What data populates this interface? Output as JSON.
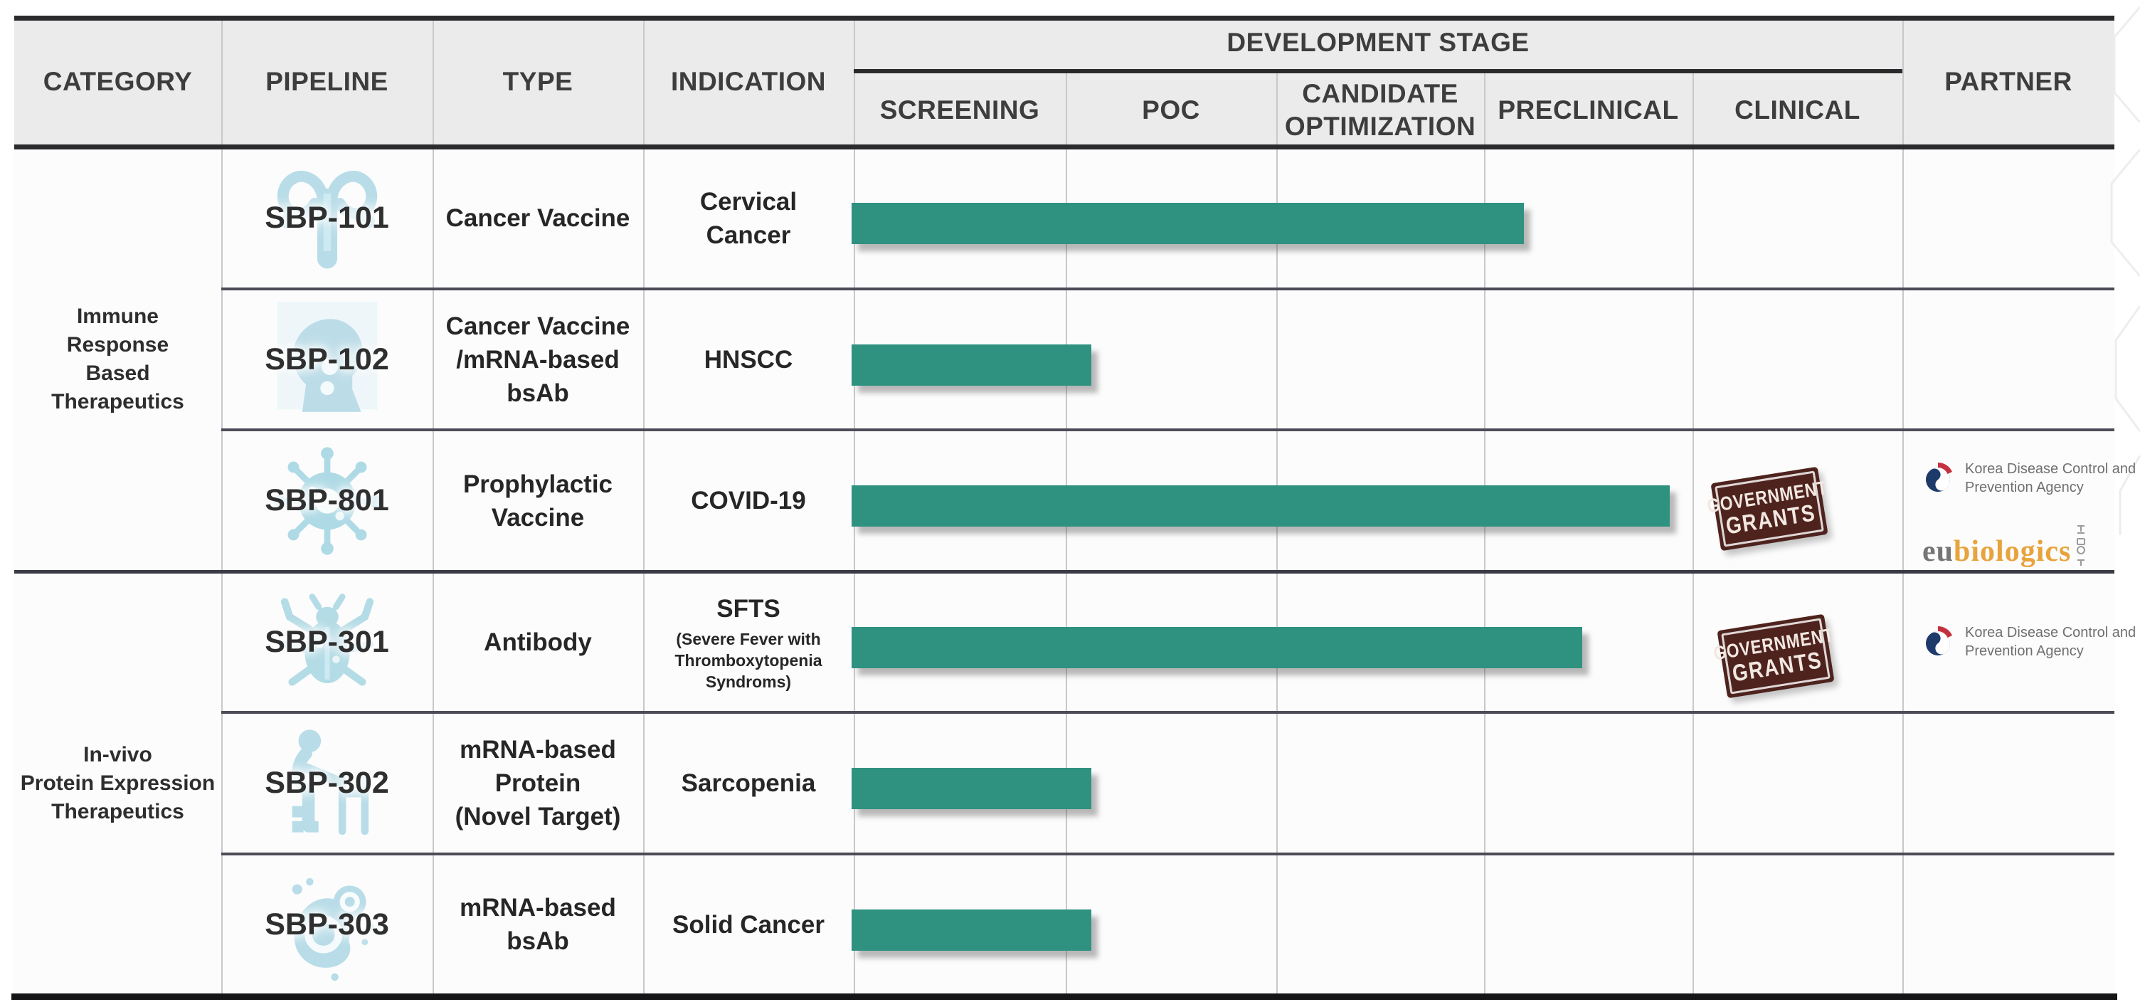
{
  "header": {
    "category": "CATEGORY",
    "pipeline": "PIPELINE",
    "type": "TYPE",
    "indication": "INDICATION",
    "development_stage": "DEVELOPMENT STAGE",
    "stages": [
      "SCREENING",
      "POC",
      "CANDIDATE OPTIMIZATION",
      "PRECLINICAL",
      "CLINICAL"
    ],
    "partner": "PARTNER"
  },
  "categories": [
    {
      "lines": [
        "Immune",
        "Response",
        "Based",
        "Therapeutics"
      ]
    },
    {
      "lines": [
        "In-vivo",
        "Protein Expression",
        "Therapeutics"
      ]
    }
  ],
  "rows": [
    {
      "pipeline": "SBP-101",
      "icon": "uterus-icon",
      "type_lines": [
        "Cancer Vaccine"
      ],
      "indication_lines": [
        "Cervical",
        "Cancer"
      ]
    },
    {
      "pipeline": "SBP-102",
      "icon": "head-neck-icon",
      "type_lines": [
        "Cancer Vaccine",
        "/mRNA-based bsAb"
      ],
      "indication_lines": [
        "HNSCC"
      ]
    },
    {
      "pipeline": "SBP-801",
      "icon": "virus-icon",
      "type_lines": [
        "Prophylactic",
        "Vaccine"
      ],
      "indication_lines": [
        "COVID-19"
      ],
      "has_stamp": true,
      "partners": [
        "Korea Disease Control and Prevention Agency",
        "eubiologics"
      ]
    },
    {
      "pipeline": "SBP-301",
      "icon": "tick-icon",
      "type_lines": [
        "Antibody"
      ],
      "indication_lines": [
        "SFTS"
      ],
      "indication_sub_lines": [
        "(Severe Fever with",
        "Thromboxytopenia",
        "Syndroms)"
      ],
      "has_stamp": true,
      "partners": [
        "Korea Disease Control and Prevention Agency"
      ]
    },
    {
      "pipeline": "SBP-302",
      "icon": "elderly-walker-icon",
      "type_lines": [
        "mRNA-based",
        "Protein",
        "(Novel Target)"
      ],
      "indication_lines": [
        "Sarcopenia"
      ]
    },
    {
      "pipeline": "SBP-303",
      "icon": "cells-icon",
      "type_lines": [
        "mRNA-based bsAb"
      ],
      "indication_lines": [
        "Solid Cancer"
      ]
    }
  ],
  "stamp": {
    "line1": "GOVERNMENT",
    "line2": "GRANTS",
    "bg_color": "#4e231e",
    "text_color": "#f2e8e1"
  },
  "partner_logos": {
    "kdca": {
      "name_line1": "Korea Disease Control and",
      "name_line2": "Prevention Agency",
      "navy": "#1d3a6b",
      "red": "#c5303e",
      "text_color": "#6f6f6f"
    },
    "eubiologics": {
      "prefix": "eu",
      "suffix": "biologics",
      "prefix_color": "#757575",
      "suffix_color": "#e8a33d"
    }
  },
  "chart_data": {
    "type": "bar",
    "title": "DEVELOPMENT STAGE",
    "categories": [
      "SBP-101",
      "SBP-102",
      "SBP-801",
      "SBP-301",
      "SBP-302",
      "SBP-303"
    ],
    "stage_axis": [
      "SCREENING",
      "POC",
      "CANDIDATE OPTIMIZATION",
      "PRECLINICAL",
      "CLINICAL"
    ],
    "series": [
      {
        "name": "SBP-101",
        "progress_stages": 3.19
      },
      {
        "name": "SBP-102",
        "progress_stages": 1.12
      },
      {
        "name": "SBP-801",
        "progress_stages": 3.89
      },
      {
        "name": "SBP-301",
        "progress_stages": 3.47
      },
      {
        "name": "SBP-302",
        "progress_stages": 1.12
      },
      {
        "name": "SBP-303",
        "progress_stages": 1.12
      }
    ],
    "xlim": [
      0,
      5
    ],
    "bar_color": "#2F9180",
    "grid": "column-lines",
    "legend": "none"
  }
}
